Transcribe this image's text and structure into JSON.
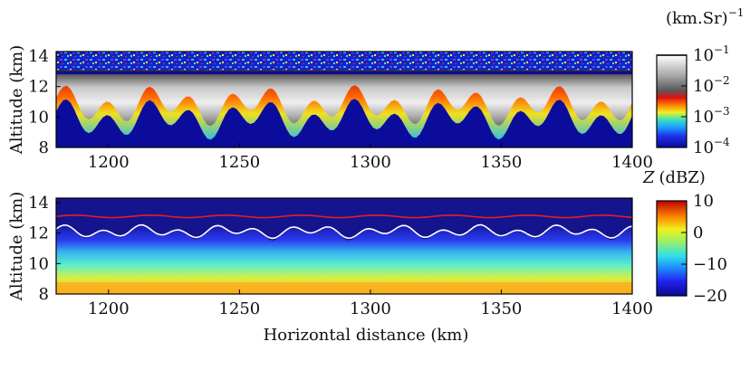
{
  "chart_data": [
    {
      "type": "heatmap",
      "panel": "top",
      "ylabel": "Altitude (km)",
      "xlabel": "",
      "xlim": [
        1180,
        1400
      ],
      "ylim": [
        8,
        14.3
      ],
      "x_ticks": [
        "1200",
        "1250",
        "1300",
        "1350",
        "1400"
      ],
      "y_ticks": [
        "8",
        "10",
        "12",
        "14"
      ],
      "colorbar": {
        "title": "(km.Sr)",
        "title_exponent": "−1",
        "scale": "log",
        "range": [
          0.0001,
          0.1
        ],
        "tick_labels": [
          {
            "base": "10",
            "exp": "−1"
          },
          {
            "base": "10",
            "exp": "−2"
          },
          {
            "base": "10",
            "exp": "−3"
          },
          {
            "base": "10",
            "exp": "−4"
          }
        ]
      },
      "cloud_top_km": 12.8,
      "cloud_base_min_km": 8.5,
      "cloud_base_max_km": 11.2,
      "legend_line_color": "#000000"
    },
    {
      "type": "heatmap",
      "panel": "bottom",
      "ylabel": "Altitude (km)",
      "xlabel": "Horizontal distance (km)",
      "xlim": [
        1180,
        1400
      ],
      "ylim": [
        8,
        14.3
      ],
      "x_ticks": [
        "1200",
        "1250",
        "1300",
        "1350",
        "1400"
      ],
      "y_ticks": [
        "8",
        "10",
        "12",
        "14"
      ],
      "colorbar": {
        "title_var": "Z",
        "title_unit": "(dBZ)",
        "range": [
          -20,
          10
        ],
        "tick_labels": [
          "10",
          "0",
          "−10",
          "−20"
        ]
      },
      "red_line_km": 13.1,
      "white_line_km": 12.1,
      "colors": {
        "red_line": "#e02020",
        "white_line": "#ffffff"
      }
    }
  ]
}
